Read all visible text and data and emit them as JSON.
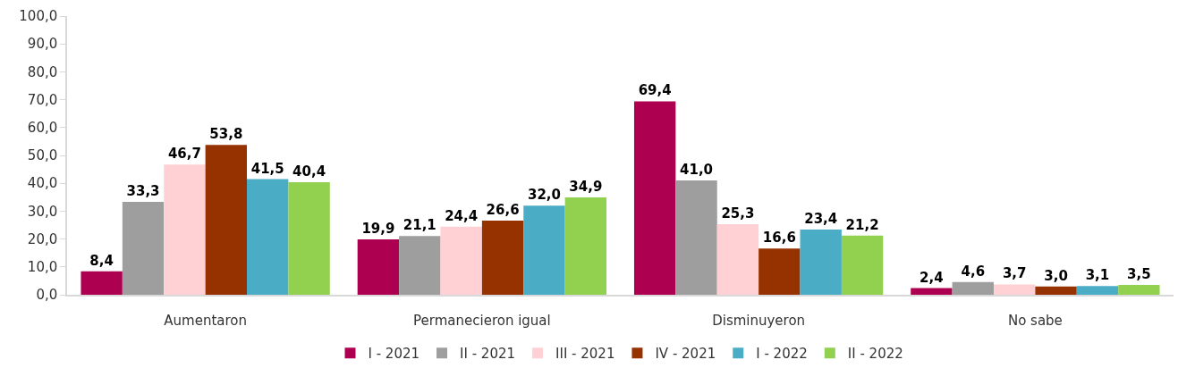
{
  "chart_data": {
    "type": "bar",
    "categories": [
      "Aumentaron",
      "Permanecieron igual",
      "Disminuyeron",
      "No sabe"
    ],
    "series": [
      {
        "name": "I - 2021",
        "color": "#ad0050",
        "values": [
          8.4,
          19.9,
          69.4,
          2.4
        ],
        "value_labels": [
          "8,4",
          "19,9",
          "69,4",
          "2,4"
        ]
      },
      {
        "name": "II - 2021",
        "color": "#9e9e9e",
        "values": [
          33.3,
          21.1,
          41.0,
          4.6
        ],
        "value_labels": [
          "33,3",
          "21,1",
          "41,0",
          "4,6"
        ]
      },
      {
        "name": "III - 2021",
        "color": "#ffd1d4",
        "values": [
          46.7,
          24.4,
          25.3,
          3.7
        ],
        "value_labels": [
          "46,7",
          "24,4",
          "25,3",
          "3,7"
        ]
      },
      {
        "name": "IV - 2021",
        "color": "#963200",
        "values": [
          53.8,
          26.6,
          16.6,
          3.0
        ],
        "value_labels": [
          "53,8",
          "26,6",
          "16,6",
          "3,0"
        ]
      },
      {
        "name": "I - 2022",
        "color": "#4bacc6",
        "values": [
          41.5,
          32.0,
          23.4,
          3.1
        ],
        "value_labels": [
          "41,5",
          "32,0",
          "23,4",
          "3,1"
        ]
      },
      {
        "name": "II - 2022",
        "color": "#92d050",
        "values": [
          40.4,
          34.9,
          21.2,
          3.5
        ],
        "value_labels": [
          "40,4",
          "34,9",
          "21,2",
          "3,5"
        ]
      }
    ],
    "ylim": [
      0,
      100
    ],
    "yticks": [
      {
        "value": 0,
        "label": "0,0"
      },
      {
        "value": 10,
        "label": "10,0"
      },
      {
        "value": 20,
        "label": "20,0"
      },
      {
        "value": 30,
        "label": "30,0"
      },
      {
        "value": 40,
        "label": "40,0"
      },
      {
        "value": 50,
        "label": "50,0"
      },
      {
        "value": 60,
        "label": "60,0"
      },
      {
        "value": 70,
        "label": "70,0"
      },
      {
        "value": 80,
        "label": "80,0"
      },
      {
        "value": 90,
        "label": "90,0"
      },
      {
        "value": 100,
        "label": "100,0"
      }
    ],
    "legend": "bottom"
  }
}
